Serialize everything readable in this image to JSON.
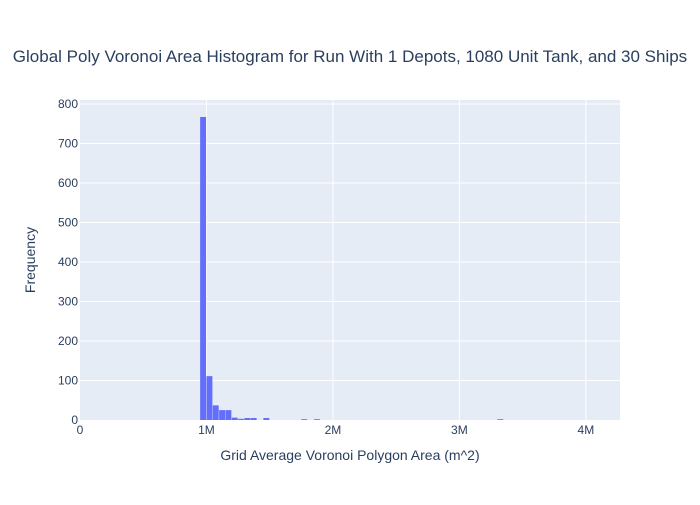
{
  "chart_data": {
    "type": "bar",
    "title": "Global Poly Voronoi Area Histogram for Run With 1 Depots, 1080 Unit Tank, and 30 Ships",
    "xlabel": "Grid Average Voronoi Polygon Area (m^2)",
    "ylabel": "Frequency",
    "xlim": [
      0,
      4270000
    ],
    "ylim": [
      0,
      810
    ],
    "x_tick_values": [
      0,
      1000000,
      2000000,
      3000000,
      4000000
    ],
    "x_tick_labels": [
      "0",
      "1M",
      "2M",
      "3M",
      "4M"
    ],
    "y_tick_values": [
      0,
      100,
      200,
      300,
      400,
      500,
      600,
      700,
      800
    ],
    "y_tick_labels": [
      "0",
      "100",
      "200",
      "300",
      "400",
      "500",
      "600",
      "700",
      "800"
    ],
    "grid": true,
    "bar_color": "#636efa",
    "plot_bg": "#e5ecf6",
    "bins": [
      {
        "x0": 950000,
        "x1": 1000000,
        "count": 767
      },
      {
        "x0": 1000000,
        "x1": 1050000,
        "count": 111
      },
      {
        "x0": 1050000,
        "x1": 1100000,
        "count": 37
      },
      {
        "x0": 1100000,
        "x1": 1150000,
        "count": 25
      },
      {
        "x0": 1150000,
        "x1": 1200000,
        "count": 25
      },
      {
        "x0": 1200000,
        "x1": 1250000,
        "count": 6
      },
      {
        "x0": 1250000,
        "x1": 1300000,
        "count": 3
      },
      {
        "x0": 1300000,
        "x1": 1350000,
        "count": 5
      },
      {
        "x0": 1350000,
        "x1": 1400000,
        "count": 5
      },
      {
        "x0": 1450000,
        "x1": 1500000,
        "count": 5
      },
      {
        "x0": 1750000,
        "x1": 1800000,
        "count": 2
      },
      {
        "x0": 1850000,
        "x1": 1900000,
        "count": 2
      },
      {
        "x0": 3300000,
        "x1": 3350000,
        "count": 2
      }
    ]
  }
}
